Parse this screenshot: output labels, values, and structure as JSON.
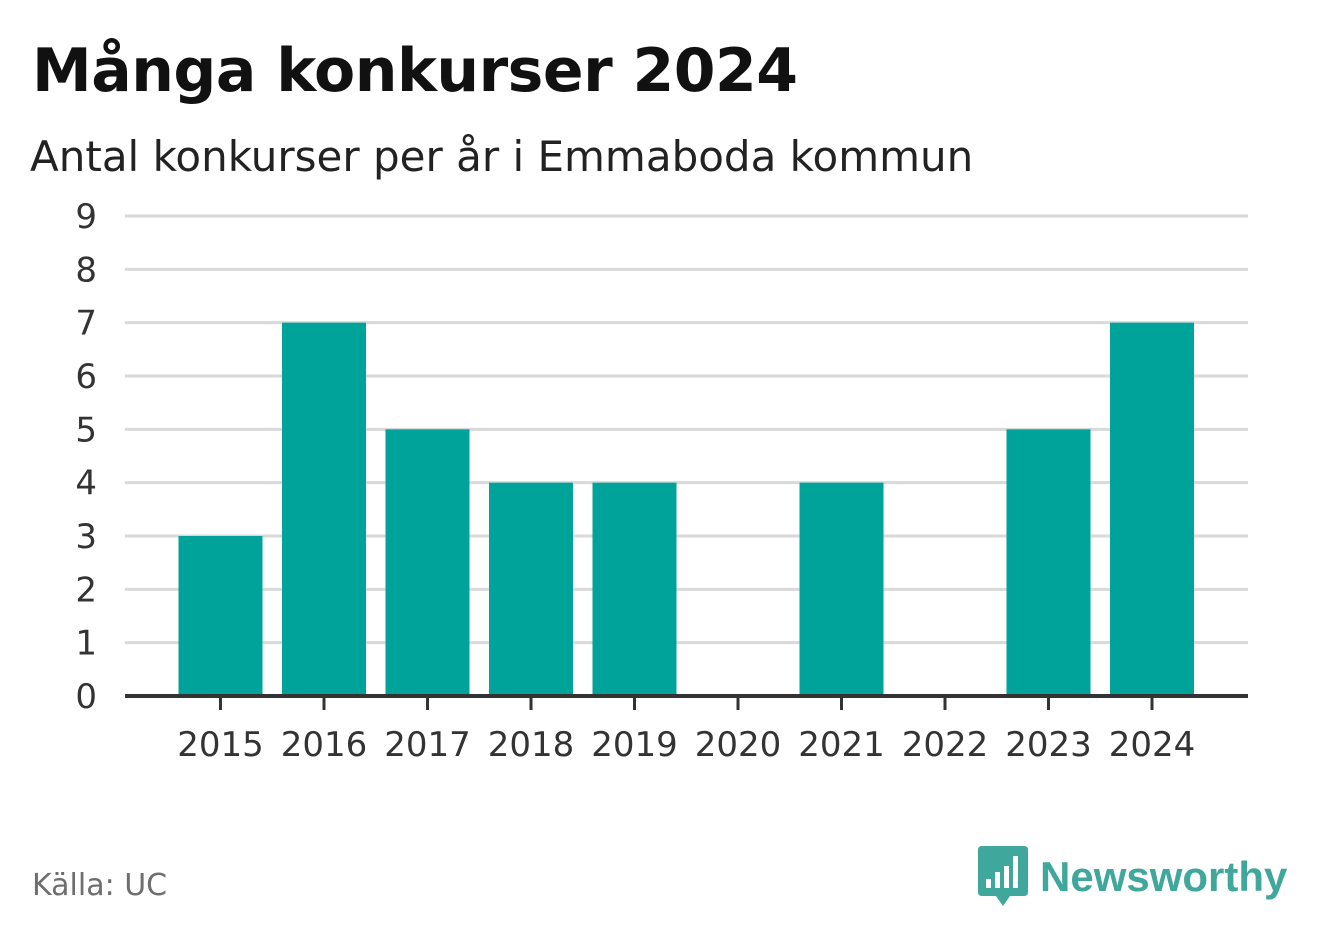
{
  "header": {
    "title": "Många konkurser 2024",
    "subtitle": "Antal konkurser per år i Emmaboda kommun"
  },
  "footer": {
    "source": "Källa: UC",
    "brand": "Newsworthy",
    "brand_icon": "bar-chart-speech-icon"
  },
  "colors": {
    "bar": "#00a39a",
    "grid": "#d9d9d9",
    "axis": "#333333",
    "brand": "#3fa79c"
  },
  "chart_data": {
    "type": "bar",
    "title": "Många konkurser 2024",
    "subtitle": "Antal konkurser per år i Emmaboda kommun",
    "xlabel": "",
    "ylabel": "",
    "categories": [
      "2015",
      "2016",
      "2017",
      "2018",
      "2019",
      "2020",
      "2021",
      "2022",
      "2023",
      "2024"
    ],
    "values": [
      3,
      7,
      5,
      4,
      4,
      0,
      4,
      0,
      5,
      7
    ],
    "ylim": [
      0,
      9
    ],
    "yticks": [
      0,
      1,
      2,
      3,
      4,
      5,
      6,
      7,
      8,
      9
    ],
    "grid": true,
    "legend": "none"
  }
}
